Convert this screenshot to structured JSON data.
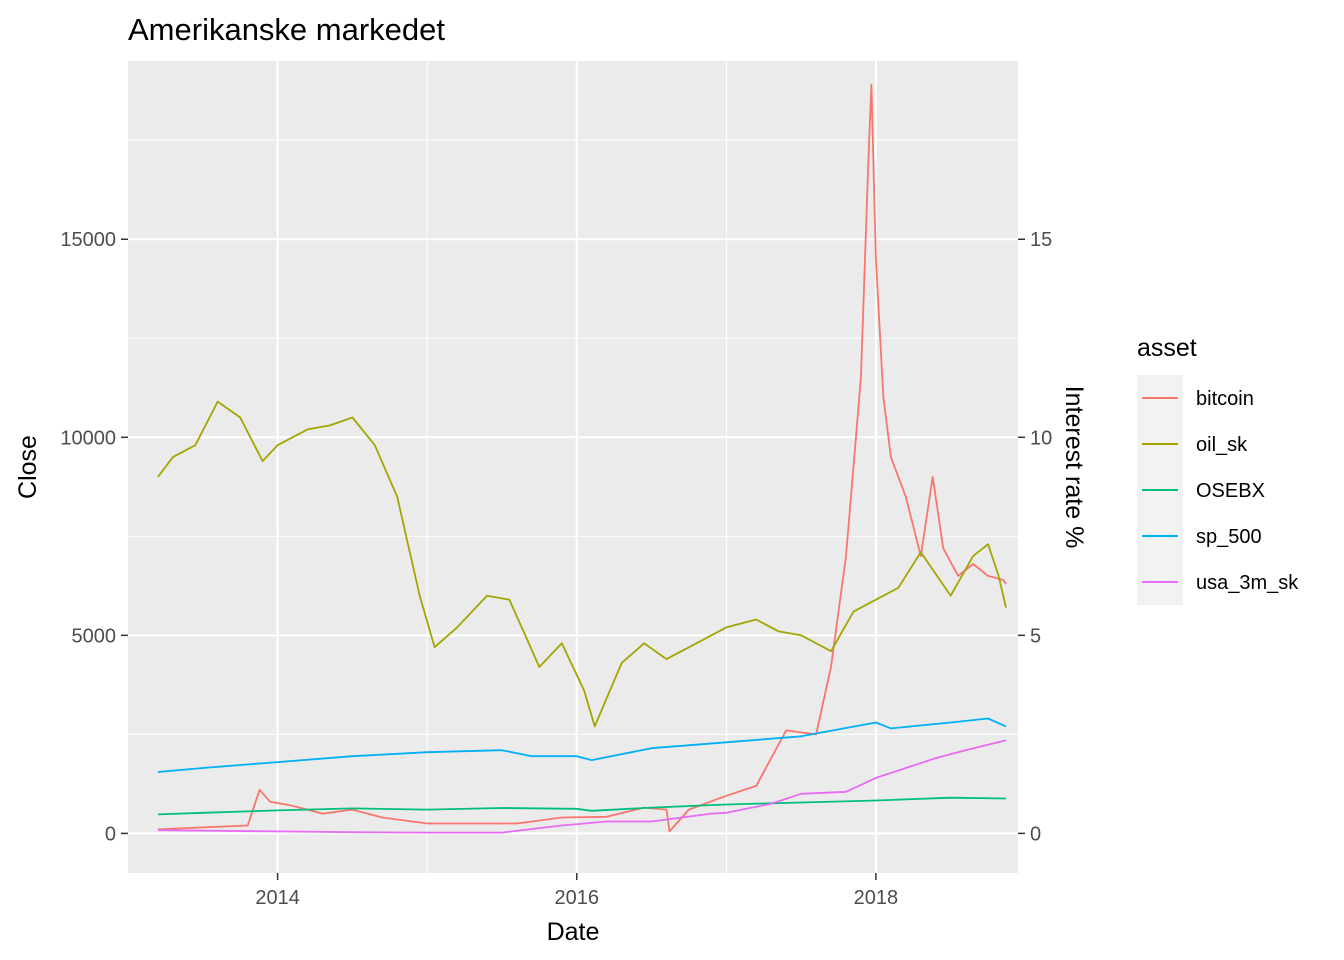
{
  "chart_data": {
    "type": "line",
    "title": "Amerikanske markedet",
    "xlabel": "Date",
    "ylabel": "Close",
    "y2label": "Interest rate %",
    "legend_title": "asset",
    "legend_position": "right",
    "grid": true,
    "x_ticks": [
      2014,
      2016,
      2018
    ],
    "x_tick_labels": [
      "2014",
      "2016",
      "2018"
    ],
    "xlim": [
      2013.0,
      2018.95
    ],
    "y_ticks": [
      0,
      5000,
      10000,
      15000
    ],
    "y_tick_labels": [
      "0",
      "5000",
      "10000",
      "15000"
    ],
    "ylim": [
      -1000,
      19500
    ],
    "y2_ticks": [
      0,
      5,
      10,
      15
    ],
    "y2_tick_labels": [
      "0",
      "5",
      "10",
      "15"
    ],
    "y2lim": [
      -1,
      19.5
    ],
    "series": [
      {
        "name": "bitcoin",
        "color": "#F8766D",
        "x": [
          2013.2,
          2013.5,
          2013.8,
          2013.88,
          2013.95,
          2014.1,
          2014.3,
          2014.5,
          2014.7,
          2015.0,
          2015.3,
          2015.6,
          2015.9,
          2016.2,
          2016.45,
          2016.6,
          2016.62,
          2016.75,
          2017.0,
          2017.2,
          2017.4,
          2017.6,
          2017.7,
          2017.8,
          2017.9,
          2017.95,
          2017.97,
          2018.0,
          2018.05,
          2018.1,
          2018.2,
          2018.3,
          2018.38,
          2018.45,
          2018.55,
          2018.65,
          2018.75,
          2018.85,
          2018.87
        ],
        "values": [
          100,
          150,
          200,
          1100,
          800,
          700,
          500,
          600,
          400,
          250,
          250,
          250,
          400,
          420,
          650,
          600,
          50,
          600,
          950,
          1200,
          2600,
          2500,
          4200,
          7000,
          11500,
          17000,
          18900,
          14500,
          11000,
          9500,
          8500,
          7000,
          9000,
          7200,
          6500,
          6800,
          6500,
          6400,
          6300
        ]
      },
      {
        "name": "oil_sk",
        "color": "#A3A500",
        "x": [
          2013.2,
          2013.3,
          2013.45,
          2013.6,
          2013.75,
          2013.9,
          2014.0,
          2014.2,
          2014.35,
          2014.5,
          2014.65,
          2014.8,
          2014.95,
          2015.05,
          2015.2,
          2015.4,
          2015.55,
          2015.75,
          2015.9,
          2016.05,
          2016.12,
          2016.3,
          2016.45,
          2016.6,
          2016.8,
          2017.0,
          2017.2,
          2017.35,
          2017.5,
          2017.7,
          2017.85,
          2018.0,
          2018.15,
          2018.3,
          2018.5,
          2018.65,
          2018.75,
          2018.82,
          2018.87
        ],
        "values": [
          9000,
          9500,
          9800,
          10900,
          10500,
          9400,
          9800,
          10200,
          10300,
          10500,
          9800,
          8500,
          6000,
          4700,
          5200,
          6000,
          5900,
          4200,
          4800,
          3600,
          2700,
          4300,
          4800,
          4400,
          4800,
          5200,
          5400,
          5100,
          5000,
          4600,
          5600,
          5900,
          6200,
          7100,
          6000,
          7000,
          7300,
          6500,
          5700
        ]
      },
      {
        "name": "OSEBX",
        "color": "#00BF7D",
        "x": [
          2013.2,
          2013.5,
          2014.0,
          2014.5,
          2015.0,
          2015.5,
          2016.0,
          2016.1,
          2016.5,
          2017.0,
          2017.5,
          2018.0,
          2018.5,
          2018.87
        ],
        "values": [
          480,
          520,
          580,
          630,
          600,
          640,
          620,
          570,
          650,
          730,
          780,
          830,
          900,
          880
        ]
      },
      {
        "name": "sp_500",
        "color": "#00B0F6",
        "x": [
          2013.2,
          2013.5,
          2014.0,
          2014.5,
          2015.0,
          2015.5,
          2015.7,
          2016.0,
          2016.1,
          2016.5,
          2017.0,
          2017.5,
          2018.0,
          2018.1,
          2018.5,
          2018.75,
          2018.87
        ],
        "values": [
          1550,
          1650,
          1800,
          1950,
          2050,
          2100,
          1950,
          1950,
          1850,
          2150,
          2300,
          2450,
          2800,
          2650,
          2800,
          2900,
          2700
        ]
      },
      {
        "name": "usa_3m_sk",
        "color": "#E76BF3",
        "axis": "y2",
        "x": [
          2013.2,
          2014.0,
          2014.5,
          2015.0,
          2015.5,
          2015.9,
          2016.2,
          2016.5,
          2016.9,
          2017.0,
          2017.3,
          2017.5,
          2017.8,
          2018.0,
          2018.2,
          2018.4,
          2018.6,
          2018.87
        ],
        "values": [
          0.08,
          0.05,
          0.03,
          0.02,
          0.02,
          0.2,
          0.3,
          0.3,
          0.5,
          0.52,
          0.75,
          1.0,
          1.05,
          1.4,
          1.65,
          1.9,
          2.1,
          2.35
        ]
      }
    ]
  }
}
